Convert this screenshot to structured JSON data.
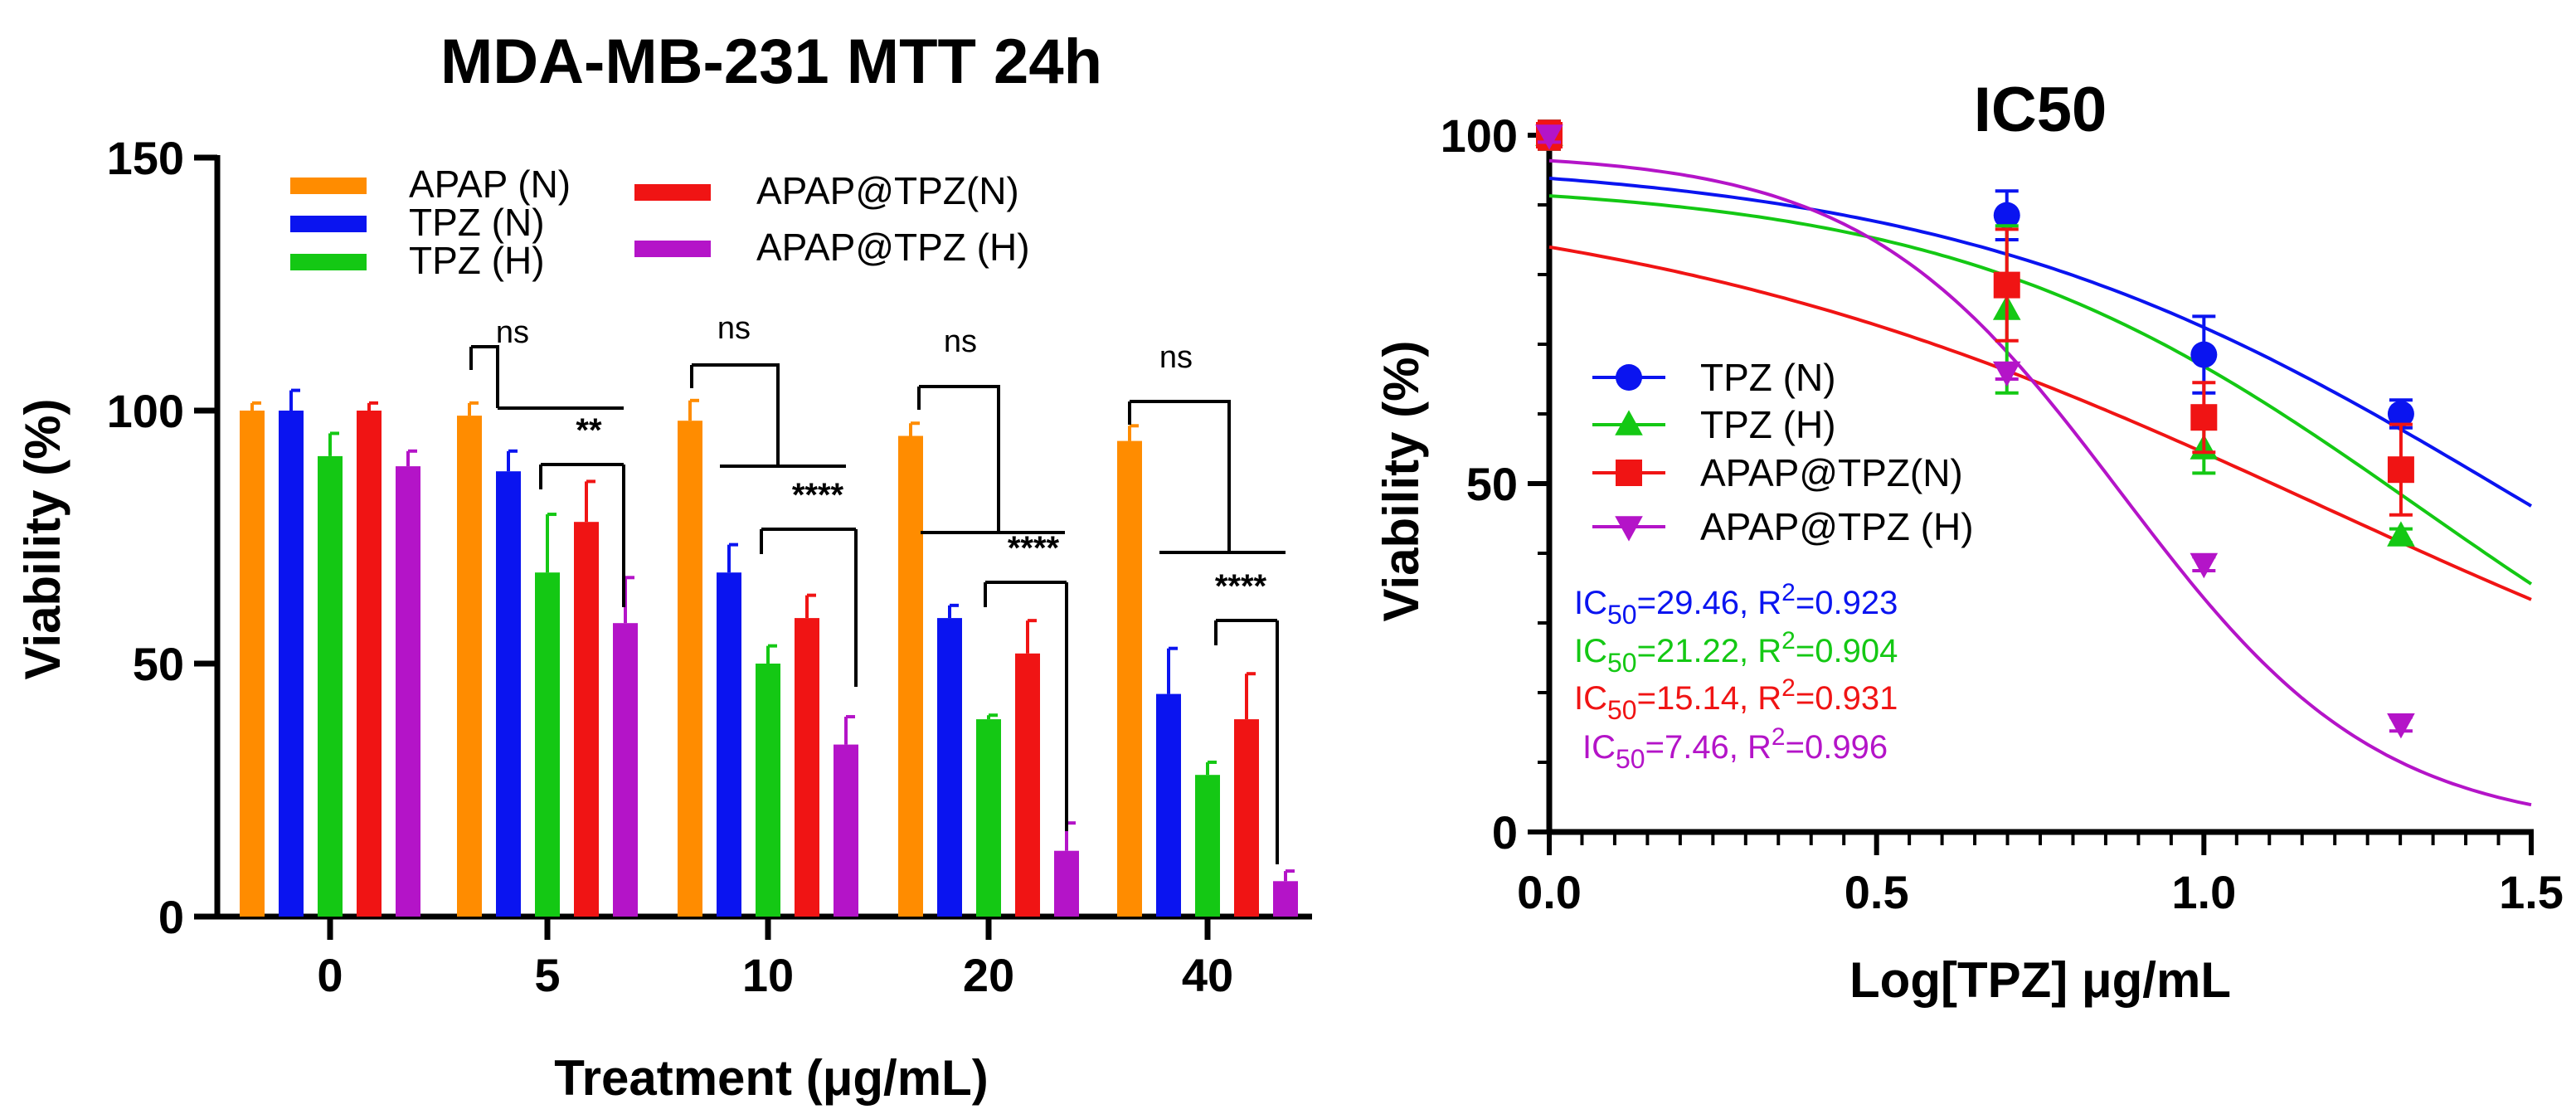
{
  "colors": {
    "apap_n": "#FF8C00",
    "tpz_n": "#0A14F0",
    "tpz_h": "#14C814",
    "apap_tpz_n": "#F01414",
    "apap_tpz_h": "#B414C8",
    "axis": "#000000"
  },
  "chart_data": [
    {
      "type": "bar",
      "title": "MDA-MB-231 MTT 24h",
      "xlabel": "Treatment (μg/mL)",
      "ylabel": "Viability (%)",
      "ylim": [
        0,
        150
      ],
      "yticks": [
        "0",
        "50",
        "100",
        "150"
      ],
      "categories": [
        "0",
        "5",
        "10",
        "20",
        "40"
      ],
      "legend_position": "top",
      "series": [
        {
          "name": "APAP (N)",
          "color_key": "apap_n",
          "values": [
            100,
            99,
            98,
            95,
            94
          ],
          "errors": [
            1.5,
            2.5,
            4,
            2.5,
            3
          ]
        },
        {
          "name": "TPZ (N)",
          "color_key": "tpz_n",
          "values": [
            100,
            88,
            68,
            59,
            44
          ],
          "errors": [
            4,
            4,
            5.5,
            2.5,
            9
          ]
        },
        {
          "name": "TPZ (H)",
          "color_key": "tpz_h",
          "values": [
            91,
            68,
            50,
            39,
            28
          ],
          "errors": [
            4.5,
            11.5,
            3.5,
            0.8,
            2.5
          ]
        },
        {
          "name": "APAP@TPZ(N)",
          "color_key": "apap_tpz_n",
          "values": [
            100,
            78,
            59,
            52,
            39
          ],
          "errors": [
            1.5,
            8,
            4.5,
            6.5,
            9
          ]
        },
        {
          "name": "APAP@TPZ (H)",
          "color_key": "apap_tpz_h",
          "values": [
            89,
            58,
            34,
            13,
            7
          ],
          "errors": [
            3,
            9,
            5.5,
            5.5,
            2
          ]
        }
      ],
      "annotations": [
        {
          "group": "5",
          "upper": "ns",
          "lower": "**"
        },
        {
          "group": "10",
          "upper": "ns",
          "lower": "****"
        },
        {
          "group": "20",
          "upper": "ns",
          "lower": "****"
        },
        {
          "group": "40",
          "upper": "ns",
          "lower": "****"
        }
      ]
    },
    {
      "type": "line",
      "title": "IC50",
      "xlabel": "Log[TPZ] μg/mL",
      "ylabel": "Viability (%)",
      "xlim": [
        0,
        1.5
      ],
      "ylim": [
        0,
        100
      ],
      "xticks": [
        "0.0",
        "0.5",
        "1.0",
        "1.5"
      ],
      "yticks": [
        "0",
        "50",
        "100"
      ],
      "legend_position": "center-left",
      "x": [
        0.0,
        0.699,
        1.0,
        1.301
      ],
      "series": [
        {
          "name": "TPZ (N)",
          "color_key": "tpz_n",
          "marker": "circle",
          "values": [
            100,
            88.5,
            68.5,
            60
          ],
          "errors": [
            2,
            3.5,
            5.5,
            2
          ],
          "ic50": 29.46,
          "top": 97.0,
          "hill": 1.0,
          "fit_label": "IC50=29.46, R2=0.923"
        },
        {
          "name": "TPZ (H)",
          "color_key": "tpz_h",
          "marker": "triangle",
          "values": [
            100,
            75,
            55,
            42.5
          ],
          "errors": [
            2,
            12,
            3.5,
            1
          ],
          "ic50": 21.22,
          "top": 93.5,
          "hill": 1.22,
          "fit_label": "IC50=21.22, R2=0.904"
        },
        {
          "name": "APAP@TPZ(N)",
          "color_key": "apap_tpz_n",
          "marker": "square",
          "values": [
            100,
            78.5,
            59.5,
            52
          ],
          "errors": [
            2,
            8,
            5,
            6.5
          ],
          "ic50": 15.14,
          "top": 93.5,
          "hill": 0.8,
          "fit_label": "IC50=15.14, R2=0.931"
        },
        {
          "name": "APAP@TPZ (H)",
          "color_key": "apap_tpz_h",
          "marker": "triangle-down",
          "values": [
            100,
            66,
            38.5,
            15.5
          ],
          "errors": [
            1,
            1,
            1,
            1
          ],
          "ic50": 7.46,
          "top": 97.5,
          "hill": 2.2,
          "fit_label": "IC50=7.46, R2=0.996"
        }
      ],
      "fit_text": [
        {
          "prefix": "IC",
          "sub": "50",
          "value": "=29.46, R",
          "sup": "2",
          "r2": "=0.923",
          "color_key": "tpz_n"
        },
        {
          "prefix": "IC",
          "sub": "50",
          "value": "=21.22, R",
          "sup": "2",
          "r2": "=0.904",
          "color_key": "tpz_h"
        },
        {
          "prefix": "IC",
          "sub": "50",
          "value": "=15.14, R",
          "sup": "2",
          "r2": "=0.931",
          "color_key": "apap_tpz_n"
        },
        {
          "prefix": "IC",
          "sub": "50",
          "value": "=7.46, R",
          "sup": "2",
          "r2": "=0.996",
          "color_key": "apap_tpz_h"
        }
      ]
    }
  ]
}
